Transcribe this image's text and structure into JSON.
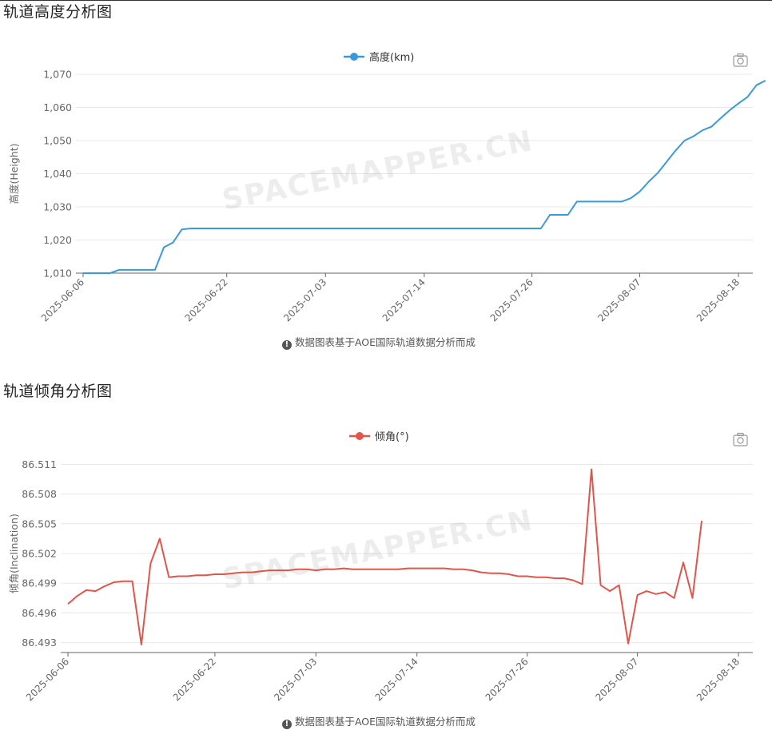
{
  "sections": [
    {
      "title": "轨道高度分析图",
      "footnote": "数据图表基于AOE国际轨道数据分析而成"
    },
    {
      "title": "轨道倾角分析图",
      "footnote": "数据图表基于AOE国际轨道数据分析而成"
    }
  ],
  "watermark": "SPACEMAPPER.CN",
  "colors": {
    "height": "#3a9ad9",
    "inclination": "#e0564b",
    "grid": "#e6e8ee",
    "axis": "#666666"
  },
  "chart_data": [
    {
      "type": "line",
      "legend": "高度(km)",
      "ylabel": "高度(Height)",
      "ylim": [
        1010,
        1070
      ],
      "yticks": [
        1010,
        1020,
        1030,
        1040,
        1050,
        1060,
        1070
      ],
      "ytick_labels": [
        "1,010",
        "1,020",
        "1,030",
        "1,040",
        "1,050",
        "1,060",
        "1,070"
      ],
      "xlim": [
        "2025-06-06",
        "2025-08-19"
      ],
      "xtick_labels": [
        "2025-06-06",
        "2025-06-22",
        "2025-07-03",
        "2025-07-14",
        "2025-07-26",
        "2025-08-07",
        "2025-08-18"
      ],
      "points": [
        [
          "2025-06-06",
          1010.0
        ],
        [
          "2025-06-09",
          1010.0
        ],
        [
          "2025-06-10",
          1011.0
        ],
        [
          "2025-06-14",
          1011.0
        ],
        [
          "2025-06-15",
          1017.8
        ],
        [
          "2025-06-16",
          1019.2
        ],
        [
          "2025-06-17",
          1023.2
        ],
        [
          "2025-06-18",
          1023.5
        ],
        [
          "2025-06-25",
          1023.5
        ],
        [
          "2025-07-05",
          1023.5
        ],
        [
          "2025-07-15",
          1023.5
        ],
        [
          "2025-07-25",
          1023.5
        ],
        [
          "2025-07-27",
          1023.5
        ],
        [
          "2025-07-28",
          1027.6
        ],
        [
          "2025-07-30",
          1027.6
        ],
        [
          "2025-07-31",
          1031.6
        ],
        [
          "2025-08-05",
          1031.6
        ],
        [
          "2025-08-06",
          1032.6
        ],
        [
          "2025-08-07",
          1034.6
        ],
        [
          "2025-08-08",
          1037.6
        ],
        [
          "2025-08-09",
          1040.2
        ],
        [
          "2025-08-10",
          1043.6
        ],
        [
          "2025-08-11",
          1047.0
        ],
        [
          "2025-08-12",
          1050.0
        ],
        [
          "2025-08-13",
          1051.3
        ],
        [
          "2025-08-14",
          1053.1
        ],
        [
          "2025-08-15",
          1054.2
        ],
        [
          "2025-08-16",
          1056.7
        ],
        [
          "2025-08-17",
          1059.1
        ],
        [
          "2025-08-18",
          1061.2
        ],
        [
          "2025-08-19",
          1063.1
        ],
        [
          "2025-08-20",
          1066.7
        ],
        [
          "2025-08-21",
          1068.1
        ]
      ]
    },
    {
      "type": "line",
      "legend": "倾角(°)",
      "ylabel": "倾角(Inclination)",
      "ylim": [
        86.492,
        86.512
      ],
      "yticks": [
        86.493,
        86.496,
        86.499,
        86.502,
        86.505,
        86.508,
        86.511
      ],
      "ytick_labels": [
        "86.493",
        "86.496",
        "86.499",
        "86.502",
        "86.505",
        "86.508",
        "86.511"
      ],
      "xlim": [
        "2025-06-06",
        "2025-08-19"
      ],
      "xtick_labels": [
        "2025-06-06",
        "2025-06-22",
        "2025-07-03",
        "2025-07-14",
        "2025-07-26",
        "2025-08-07",
        "2025-08-18"
      ],
      "points": [
        [
          "2025-06-06",
          86.4969
        ],
        [
          "2025-06-07",
          86.4977
        ],
        [
          "2025-06-08",
          86.4983
        ],
        [
          "2025-06-09",
          86.4982
        ],
        [
          "2025-06-10",
          86.4987
        ],
        [
          "2025-06-11",
          86.4991
        ],
        [
          "2025-06-12",
          86.4992
        ],
        [
          "2025-06-13",
          86.4992
        ],
        [
          "2025-06-14",
          86.4928
        ],
        [
          "2025-06-15",
          86.501
        ],
        [
          "2025-06-16",
          86.5035
        ],
        [
          "2025-06-17",
          86.4996
        ],
        [
          "2025-06-18",
          86.4997
        ],
        [
          "2025-06-19",
          86.4997
        ],
        [
          "2025-06-20",
          86.4998
        ],
        [
          "2025-06-21",
          86.4998
        ],
        [
          "2025-06-22",
          86.4999
        ],
        [
          "2025-06-23",
          86.4999
        ],
        [
          "2025-06-24",
          86.5
        ],
        [
          "2025-06-25",
          86.5001
        ],
        [
          "2025-06-26",
          86.5001
        ],
        [
          "2025-06-27",
          86.5002
        ],
        [
          "2025-06-28",
          86.5003
        ],
        [
          "2025-06-29",
          86.5003
        ],
        [
          "2025-06-30",
          86.5003
        ],
        [
          "2025-07-01",
          86.5004
        ],
        [
          "2025-07-02",
          86.5004
        ],
        [
          "2025-07-03",
          86.5003
        ],
        [
          "2025-07-04",
          86.5004
        ],
        [
          "2025-07-05",
          86.5004
        ],
        [
          "2025-07-06",
          86.5005
        ],
        [
          "2025-07-07",
          86.5004
        ],
        [
          "2025-07-08",
          86.5004
        ],
        [
          "2025-07-09",
          86.5004
        ],
        [
          "2025-07-10",
          86.5004
        ],
        [
          "2025-07-11",
          86.5004
        ],
        [
          "2025-07-12",
          86.5004
        ],
        [
          "2025-07-13",
          86.5005
        ],
        [
          "2025-07-14",
          86.5005
        ],
        [
          "2025-07-15",
          86.5005
        ],
        [
          "2025-07-16",
          86.5005
        ],
        [
          "2025-07-17",
          86.5005
        ],
        [
          "2025-07-18",
          86.5004
        ],
        [
          "2025-07-19",
          86.5004
        ],
        [
          "2025-07-20",
          86.5003
        ],
        [
          "2025-07-21",
          86.5001
        ],
        [
          "2025-07-22",
          86.5
        ],
        [
          "2025-07-23",
          86.5
        ],
        [
          "2025-07-24",
          86.4999
        ],
        [
          "2025-07-25",
          86.4997
        ],
        [
          "2025-07-26",
          86.4997
        ],
        [
          "2025-07-27",
          86.4996
        ],
        [
          "2025-07-28",
          86.4996
        ],
        [
          "2025-07-29",
          86.4995
        ],
        [
          "2025-07-30",
          86.4995
        ],
        [
          "2025-07-31",
          86.4993
        ],
        [
          "2025-08-01",
          86.4989
        ],
        [
          "2025-08-02",
          86.5105
        ],
        [
          "2025-08-03",
          86.4988
        ],
        [
          "2025-08-04",
          86.4982
        ],
        [
          "2025-08-05",
          86.4988
        ],
        [
          "2025-08-06",
          86.4929
        ],
        [
          "2025-08-07",
          86.4978
        ],
        [
          "2025-08-08",
          86.4982
        ],
        [
          "2025-08-09",
          86.4979
        ],
        [
          "2025-08-10",
          86.4981
        ],
        [
          "2025-08-11",
          86.4975
        ],
        [
          "2025-08-12",
          86.5011
        ],
        [
          "2025-08-13",
          86.4975
        ],
        [
          "2025-08-14",
          86.5053
        ]
      ]
    }
  ]
}
